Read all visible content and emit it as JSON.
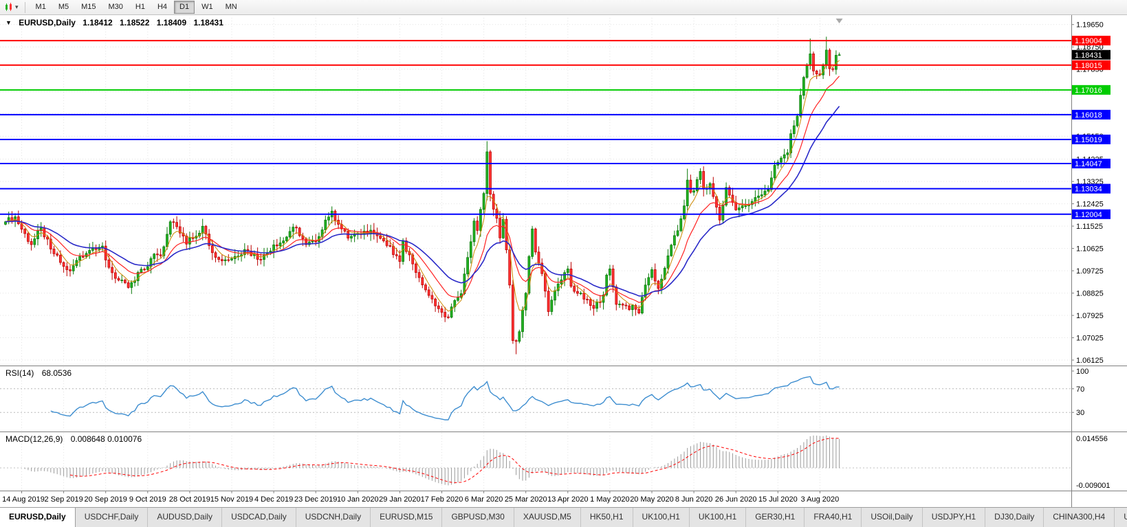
{
  "icons": {
    "caret_down": "▾",
    "symbol_caret": "▼"
  },
  "toolbar": {
    "timeframes": [
      "M1",
      "M5",
      "M15",
      "M30",
      "H1",
      "H4",
      "D1",
      "W1",
      "MN"
    ],
    "active": "D1"
  },
  "header": {
    "symbol": "EURUSD,Daily",
    "open": "1.18412",
    "high": "1.18522",
    "low": "1.18409",
    "close": "1.18431"
  },
  "panels": {
    "rsi_label": "RSI(14)",
    "rsi_value": "68.0536",
    "macd_label": "MACD(12,26,9)",
    "macd_values": "0.008648 0.010076"
  },
  "tabs": {
    "active_index": 0,
    "items": [
      "EURUSD,Daily",
      "USDCHF,Daily",
      "AUDUSD,Daily",
      "USDCAD,Daily",
      "USDCNH,Daily",
      "EURUSD,M15",
      "GBPUSD,M30",
      "XAUUSD,M5",
      "HK50,H1",
      "UK100,H1",
      "UK100,H1",
      "GER30,H1",
      "FRA40,H1",
      "USOil,Daily",
      "USDJPY,H1",
      "DJ30,Daily",
      "CHINA300,H4",
      "USOil,D"
    ]
  },
  "chart_data": {
    "type": "candlestick",
    "title": "EURUSD,Daily",
    "symbol": "EURUSD",
    "timeframe": "Daily",
    "candles_count": 259,
    "price_range": [
      1.0596,
      1.1992
    ],
    "y_ticks": [
      1.1965,
      1.1875,
      1.1785,
      1.1695,
      1.1605,
      1.1515,
      1.14225,
      1.13325,
      1.12425,
      1.11525,
      1.10625,
      1.09725,
      1.08825,
      1.07925,
      1.07025,
      1.06125
    ],
    "current_price": 1.18431,
    "colors": {
      "up_fill": "#23b123",
      "up_stroke": "#0a7a0a",
      "down_fill": "#ff3434",
      "down_stroke": "#bb0000",
      "grid": "#e3e3e3",
      "frame": "#808080"
    },
    "x_labels": [
      {
        "index": 5,
        "label": "14 Aug 2019"
      },
      {
        "index": 18,
        "label": "2 Sep 2019"
      },
      {
        "index": 31,
        "label": "20 Sep 2019"
      },
      {
        "index": 44,
        "label": "9 Oct 2019"
      },
      {
        "index": 57,
        "label": "28 Oct 2019"
      },
      {
        "index": 70,
        "label": "15 Nov 2019"
      },
      {
        "index": 83,
        "label": "4 Dec 2019"
      },
      {
        "index": 96,
        "label": "23 Dec 2019"
      },
      {
        "index": 109,
        "label": "10 Jan 2020"
      },
      {
        "index": 122,
        "label": "29 Jan 2020"
      },
      {
        "index": 135,
        "label": "17 Feb 2020"
      },
      {
        "index": 148,
        "label": "6 Mar 2020"
      },
      {
        "index": 161,
        "label": "25 Mar 2020"
      },
      {
        "index": 174,
        "label": "13 Apr 2020"
      },
      {
        "index": 187,
        "label": "1 May 2020"
      },
      {
        "index": 200,
        "label": "20 May 2020"
      },
      {
        "index": 213,
        "label": "8 Jun 2020"
      },
      {
        "index": 226,
        "label": "26 Jun 2020"
      },
      {
        "index": 239,
        "label": "15 Jul 2020"
      },
      {
        "index": 252,
        "label": "3 Aug 2020"
      }
    ],
    "close_anchors": [
      [
        0,
        1.117
      ],
      [
        3,
        1.119
      ],
      [
        5,
        1.114
      ],
      [
        8,
        1.1078
      ],
      [
        11,
        1.1145
      ],
      [
        14,
        1.106
      ],
      [
        18,
        1.099
      ],
      [
        20,
        1.0972
      ],
      [
        23,
        1.103
      ],
      [
        27,
        1.1063
      ],
      [
        30,
        1.1072
      ],
      [
        31,
        1.1016
      ],
      [
        34,
        1.0942
      ],
      [
        38,
        1.0905
      ],
      [
        40,
        1.0932
      ],
      [
        42,
        1.0979
      ],
      [
        44,
        1.0989
      ],
      [
        46,
        1.104
      ],
      [
        48,
        1.1033
      ],
      [
        51,
        1.117
      ],
      [
        53,
        1.115
      ],
      [
        56,
        1.108
      ],
      [
        57,
        1.1105
      ],
      [
        59,
        1.1112
      ],
      [
        61,
        1.1152
      ],
      [
        63,
        1.1074
      ],
      [
        66,
        1.1018
      ],
      [
        70,
        1.1021
      ],
      [
        74,
        1.1058
      ],
      [
        79,
        1.1018
      ],
      [
        83,
        1.1077
      ],
      [
        86,
        1.1093
      ],
      [
        88,
        1.1131
      ],
      [
        90,
        1.1145
      ],
      [
        93,
        1.1078
      ],
      [
        96,
        1.109
      ],
      [
        99,
        1.1177
      ],
      [
        101,
        1.1213
      ],
      [
        103,
        1.116
      ],
      [
        106,
        1.1104
      ],
      [
        109,
        1.1122
      ],
      [
        113,
        1.1136
      ],
      [
        117,
        1.1093
      ],
      [
        122,
        1.101
      ],
      [
        123,
        1.1093
      ],
      [
        126,
        1.1
      ],
      [
        128,
        1.0945
      ],
      [
        131,
        1.0873
      ],
      [
        133,
        1.0831
      ],
      [
        135,
        1.0805
      ],
      [
        137,
        1.0785
      ],
      [
        139,
        1.0853
      ],
      [
        141,
        1.088
      ],
      [
        143,
        1.1026
      ],
      [
        145,
        1.1173
      ],
      [
        146,
        1.1135
      ],
      [
        148,
        1.1284
      ],
      [
        149,
        1.1452
      ],
      [
        150,
        1.1281
      ],
      [
        152,
        1.1184
      ],
      [
        153,
        1.1105
      ],
      [
        154,
        1.118
      ],
      [
        156,
        1.0915
      ],
      [
        157,
        1.0691
      ],
      [
        158,
        1.0688
      ],
      [
        159,
        1.0727
      ],
      [
        161,
        1.0882
      ],
      [
        162,
        1.103
      ],
      [
        163,
        1.1141
      ],
      [
        164,
        1.1048
      ],
      [
        166,
        1.0961
      ],
      [
        168,
        1.0808
      ],
      [
        170,
        1.0892
      ],
      [
        172,
        1.0936
      ],
      [
        174,
        1.098
      ],
      [
        175,
        1.091
      ],
      [
        179,
        1.0858
      ],
      [
        182,
        1.0821
      ],
      [
        185,
        1.0875
      ],
      [
        186,
        1.0955
      ],
      [
        187,
        1.098
      ],
      [
        189,
        1.0837
      ],
      [
        191,
        1.0834
      ],
      [
        195,
        1.0817
      ],
      [
        196,
        1.0802
      ],
      [
        198,
        1.0915
      ],
      [
        200,
        1.0977
      ],
      [
        202,
        1.0901
      ],
      [
        204,
        1.0983
      ],
      [
        206,
        1.1076
      ],
      [
        208,
        1.1134
      ],
      [
        210,
        1.1234
      ],
      [
        211,
        1.1338
      ],
      [
        212,
        1.1289
      ],
      [
        213,
        1.1295
      ],
      [
        214,
        1.134
      ],
      [
        215,
        1.1373
      ],
      [
        216,
        1.1302
      ],
      [
        218,
        1.1324
      ],
      [
        221,
        1.1177
      ],
      [
        223,
        1.1308
      ],
      [
        226,
        1.1218
      ],
      [
        228,
        1.1234
      ],
      [
        230,
        1.1239
      ],
      [
        233,
        1.1274
      ],
      [
        236,
        1.13
      ],
      [
        238,
        1.1398
      ],
      [
        239,
        1.141
      ],
      [
        242,
        1.1448
      ],
      [
        243,
        1.1525
      ],
      [
        245,
        1.1596
      ],
      [
        247,
        1.1752
      ],
      [
        249,
        1.1847
      ],
      [
        250,
        1.1778
      ],
      [
        252,
        1.1762
      ],
      [
        253,
        1.1803
      ],
      [
        254,
        1.1862
      ],
      [
        255,
        1.1787
      ],
      [
        256,
        1.1784
      ],
      [
        257,
        1.18412
      ],
      [
        258,
        1.18431
      ]
    ],
    "wick_overrides": [
      {
        "i": 39,
        "l": 1.0879
      },
      {
        "i": 137,
        "l": 1.0778
      },
      {
        "i": 149,
        "h": 1.1495
      },
      {
        "i": 158,
        "l": 1.0636
      },
      {
        "i": 211,
        "h": 1.1384
      },
      {
        "i": 249,
        "h": 1.1909
      },
      {
        "i": 254,
        "h": 1.1916
      },
      {
        "i": 258,
        "h": 1.18522,
        "l": 1.18409
      }
    ],
    "moving_averages": [
      {
        "period": 5,
        "method": "ema",
        "color": "#cc8800",
        "width": 1
      },
      {
        "period": 13,
        "method": "ema",
        "color": "#ff2222",
        "width": 1.2
      },
      {
        "period": 26,
        "method": "ema",
        "color": "#2929c8",
        "width": 1.6
      }
    ],
    "hlines": [
      {
        "price": 1.19004,
        "label": "1.19004",
        "color": "#ff0000"
      },
      {
        "price": 1.18015,
        "label": "1.18015",
        "color": "#ff0000"
      },
      {
        "price": 1.17016,
        "label": "1.17016",
        "color": "#00cc00"
      },
      {
        "price": 1.16018,
        "label": "1.16018",
        "color": "#0000ff"
      },
      {
        "price": 1.15019,
        "label": "1.15019",
        "color": "#0000ff"
      },
      {
        "price": 1.14047,
        "label": "1.14047",
        "color": "#0000ff"
      },
      {
        "price": 1.13034,
        "label": "1.13034",
        "color": "#0000ff"
      },
      {
        "price": 1.12004,
        "label": "1.12004",
        "color": "#0000ff"
      }
    ],
    "current_badge": {
      "label": "1.18431",
      "price": 1.18431,
      "color": "#000000"
    },
    "rsi": {
      "period": 14,
      "value": 68.0536,
      "levels": [
        70,
        30
      ],
      "axis_labels": [
        100,
        70,
        30
      ],
      "color": "#3e8ed0"
    },
    "macd": {
      "fast": 12,
      "slow": 26,
      "signal": 9,
      "axis_max": 0.014556,
      "axis_min": -0.009001,
      "axis_max_label": "0.014556",
      "axis_min_label": "-0.009001",
      "hist_color": "#9b9b9b",
      "signal_color": "#ff0000"
    }
  }
}
